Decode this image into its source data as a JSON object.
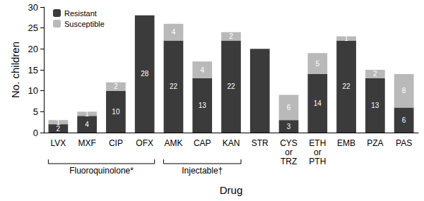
{
  "chart_data": {
    "type": "bar",
    "stacked": true,
    "x_label": "Drug",
    "y_label": "No. children",
    "categories": [
      "LVX",
      "MXF",
      "CIP",
      "OFX",
      "AMK",
      "CAP",
      "KAN",
      "STR",
      "CYS\nor\nTRZ",
      "ETH\nor\nPTH",
      "EMB",
      "PZA",
      "PAS"
    ],
    "series": [
      {
        "name": "Resistant",
        "color": "#3b3b3b",
        "values": [
          2,
          4,
          10,
          28,
          22,
          13,
          22,
          20,
          3,
          14,
          22,
          13,
          6
        ],
        "value_labels": [
          "2",
          "4",
          "10",
          "28",
          "22",
          "13",
          "22",
          null,
          "3",
          "14",
          "22",
          "13",
          "6"
        ]
      },
      {
        "name": "Susceptible",
        "color": "#b9b9b9",
        "values": [
          1,
          1,
          2,
          null,
          4,
          4,
          2,
          null,
          6,
          5,
          1,
          2,
          8
        ]
      }
    ],
    "ylim": [
      0,
      30
    ],
    "yticks": [
      0,
      5,
      10,
      15,
      20,
      25,
      30
    ],
    "grid": false,
    "legend": "top-left",
    "data_labels": true,
    "annotations": [
      {
        "label": "Fluoroquinolone*",
        "from": "LVX",
        "to": "OFX"
      },
      {
        "label": "Injectable†",
        "from": "AMK",
        "to": "KAN"
      }
    ]
  }
}
